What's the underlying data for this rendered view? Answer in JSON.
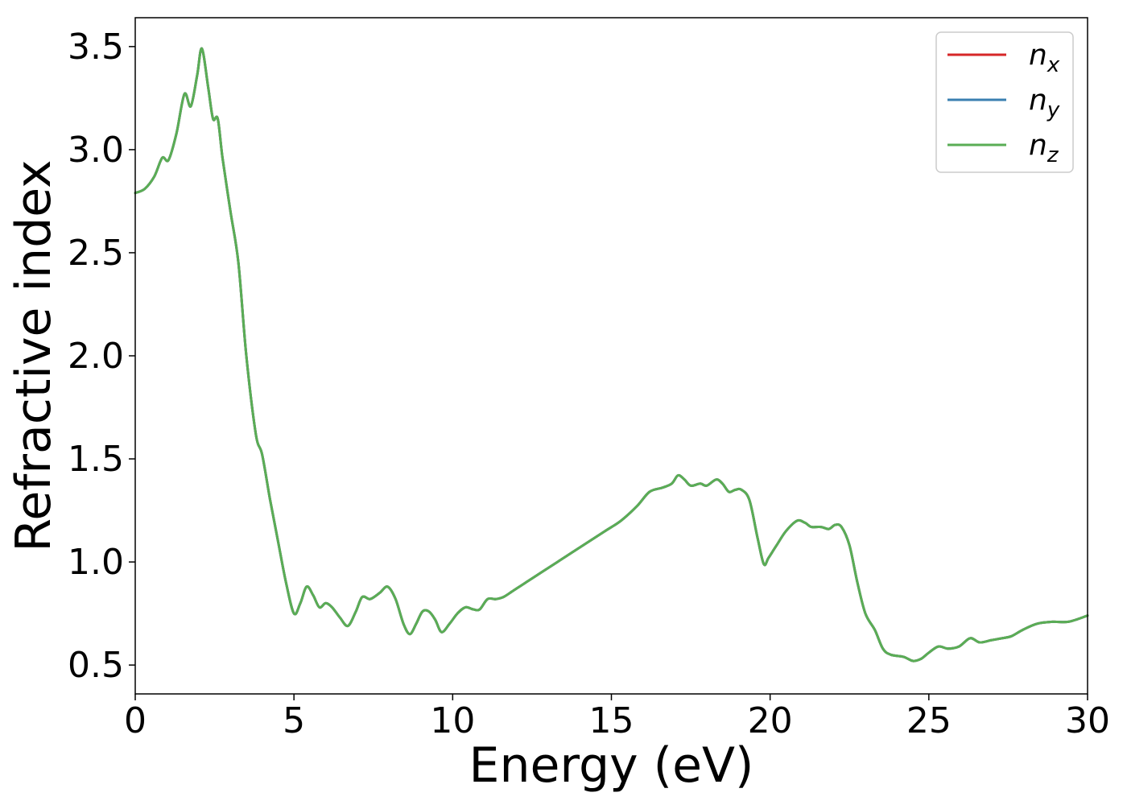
{
  "chart_data": {
    "type": "line",
    "xlabel": "Energy (eV)",
    "ylabel": "Refractive index",
    "xlim": [
      0,
      30
    ],
    "ylim": [
      0.36,
      3.64
    ],
    "xticks": [
      "0",
      "5",
      "10",
      "15",
      "20",
      "25",
      "30"
    ],
    "yticks": [
      "0.5",
      "1.0",
      "1.5",
      "2.0",
      "2.5",
      "3.0",
      "3.5"
    ],
    "grid": false,
    "legend_position": "top-right",
    "x": [
      0,
      0.3,
      0.6,
      0.85,
      1.05,
      1.3,
      1.55,
      1.75,
      1.95,
      2.1,
      2.3,
      2.45,
      2.6,
      2.75,
      3.0,
      3.25,
      3.5,
      3.8,
      4.0,
      4.25,
      4.5,
      4.75,
      5.0,
      5.2,
      5.4,
      5.6,
      5.8,
      6.0,
      6.2,
      6.45,
      6.7,
      6.95,
      7.15,
      7.4,
      7.7,
      7.95,
      8.2,
      8.45,
      8.65,
      8.85,
      9.05,
      9.25,
      9.45,
      9.65,
      9.9,
      10.15,
      10.4,
      10.65,
      10.85,
      11.1,
      11.35,
      11.6,
      11.9,
      12.3,
      12.8,
      13.3,
      13.8,
      14.3,
      14.8,
      15.3,
      15.8,
      16.2,
      16.6,
      16.9,
      17.1,
      17.3,
      17.5,
      17.8,
      18.0,
      18.3,
      18.5,
      18.7,
      18.9,
      19.1,
      19.35,
      19.6,
      19.8,
      19.95,
      20.2,
      20.5,
      20.85,
      21.1,
      21.3,
      21.6,
      21.85,
      22.05,
      22.25,
      22.5,
      22.75,
      23.0,
      23.3,
      23.55,
      23.8,
      24.2,
      24.5,
      24.75,
      25.0,
      25.3,
      25.6,
      25.95,
      26.3,
      26.6,
      26.95,
      27.3,
      27.6,
      27.95,
      28.4,
      28.9,
      29.4,
      30.0
    ],
    "series": [
      {
        "name": "n_x",
        "color": "#d62728",
        "values": [
          2.79,
          2.81,
          2.87,
          2.96,
          2.95,
          3.08,
          3.27,
          3.21,
          3.36,
          3.49,
          3.3,
          3.15,
          3.15,
          2.96,
          2.7,
          2.45,
          2.0,
          1.62,
          1.52,
          1.3,
          1.1,
          0.9,
          0.75,
          0.8,
          0.88,
          0.84,
          0.78,
          0.8,
          0.78,
          0.73,
          0.69,
          0.76,
          0.83,
          0.82,
          0.85,
          0.88,
          0.82,
          0.7,
          0.65,
          0.7,
          0.76,
          0.76,
          0.72,
          0.66,
          0.7,
          0.75,
          0.78,
          0.77,
          0.77,
          0.82,
          0.82,
          0.83,
          0.86,
          0.9,
          0.95,
          1.0,
          1.05,
          1.1,
          1.15,
          1.2,
          1.27,
          1.34,
          1.36,
          1.38,
          1.42,
          1.4,
          1.37,
          1.38,
          1.37,
          1.4,
          1.38,
          1.34,
          1.35,
          1.35,
          1.3,
          1.12,
          0.99,
          1.02,
          1.08,
          1.15,
          1.2,
          1.19,
          1.17,
          1.17,
          1.16,
          1.18,
          1.17,
          1.08,
          0.9,
          0.75,
          0.67,
          0.58,
          0.55,
          0.54,
          0.52,
          0.53,
          0.56,
          0.59,
          0.58,
          0.59,
          0.63,
          0.61,
          0.62,
          0.63,
          0.64,
          0.67,
          0.7,
          0.71,
          0.71,
          0.74
        ]
      },
      {
        "name": "n_y",
        "color": "#3a7fb0",
        "values": [
          2.79,
          2.81,
          2.87,
          2.96,
          2.95,
          3.08,
          3.27,
          3.21,
          3.36,
          3.49,
          3.3,
          3.15,
          3.15,
          2.96,
          2.7,
          2.45,
          2.0,
          1.62,
          1.52,
          1.3,
          1.1,
          0.9,
          0.75,
          0.8,
          0.88,
          0.84,
          0.78,
          0.8,
          0.78,
          0.73,
          0.69,
          0.76,
          0.83,
          0.82,
          0.85,
          0.88,
          0.82,
          0.7,
          0.65,
          0.7,
          0.76,
          0.76,
          0.72,
          0.66,
          0.7,
          0.75,
          0.78,
          0.77,
          0.77,
          0.82,
          0.82,
          0.83,
          0.86,
          0.9,
          0.95,
          1.0,
          1.05,
          1.1,
          1.15,
          1.2,
          1.27,
          1.34,
          1.36,
          1.38,
          1.42,
          1.4,
          1.37,
          1.38,
          1.37,
          1.4,
          1.38,
          1.34,
          1.35,
          1.35,
          1.3,
          1.12,
          0.99,
          1.02,
          1.08,
          1.15,
          1.2,
          1.19,
          1.17,
          1.17,
          1.16,
          1.18,
          1.17,
          1.08,
          0.9,
          0.75,
          0.67,
          0.58,
          0.55,
          0.54,
          0.52,
          0.53,
          0.56,
          0.59,
          0.58,
          0.59,
          0.63,
          0.61,
          0.62,
          0.63,
          0.64,
          0.67,
          0.7,
          0.71,
          0.71,
          0.74
        ]
      },
      {
        "name": "n_z",
        "color": "#5aad55",
        "values": [
          2.79,
          2.81,
          2.87,
          2.96,
          2.95,
          3.08,
          3.27,
          3.21,
          3.36,
          3.49,
          3.3,
          3.15,
          3.15,
          2.96,
          2.7,
          2.45,
          2.0,
          1.62,
          1.52,
          1.3,
          1.1,
          0.9,
          0.75,
          0.8,
          0.88,
          0.84,
          0.78,
          0.8,
          0.78,
          0.73,
          0.69,
          0.76,
          0.83,
          0.82,
          0.85,
          0.88,
          0.82,
          0.7,
          0.65,
          0.7,
          0.76,
          0.76,
          0.72,
          0.66,
          0.7,
          0.75,
          0.78,
          0.77,
          0.77,
          0.82,
          0.82,
          0.83,
          0.86,
          0.9,
          0.95,
          1.0,
          1.05,
          1.1,
          1.15,
          1.2,
          1.27,
          1.34,
          1.36,
          1.38,
          1.42,
          1.4,
          1.37,
          1.38,
          1.37,
          1.4,
          1.38,
          1.34,
          1.35,
          1.35,
          1.3,
          1.12,
          0.99,
          1.02,
          1.08,
          1.15,
          1.2,
          1.19,
          1.17,
          1.17,
          1.16,
          1.18,
          1.17,
          1.08,
          0.9,
          0.75,
          0.67,
          0.58,
          0.55,
          0.54,
          0.52,
          0.53,
          0.56,
          0.59,
          0.58,
          0.59,
          0.63,
          0.61,
          0.62,
          0.63,
          0.64,
          0.67,
          0.7,
          0.71,
          0.71,
          0.74
        ]
      }
    ],
    "legend": [
      {
        "base": "n",
        "sub": "x",
        "color": "#d62728"
      },
      {
        "base": "n",
        "sub": "y",
        "color": "#3a7fb0"
      },
      {
        "base": "n",
        "sub": "z",
        "color": "#5aad55"
      }
    ]
  }
}
